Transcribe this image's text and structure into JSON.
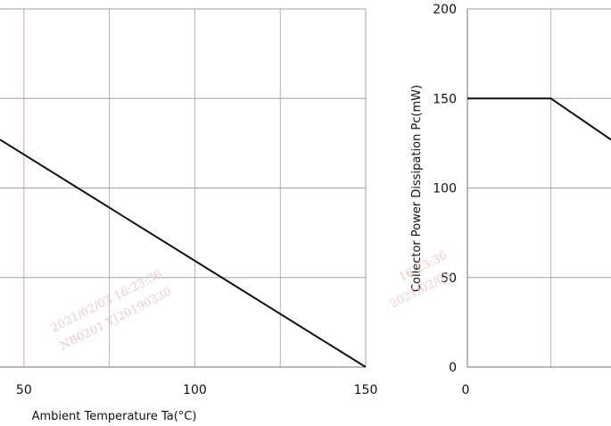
{
  "chart_data": [
    {
      "type": "line",
      "xlabel": "Ambient Temperature Ta(°C)",
      "ylabel": "",
      "x_ticks": [
        "50",
        "100",
        "150"
      ],
      "xlim": [
        43,
        150
      ],
      "ylim": [
        0,
        200
      ],
      "grid": true,
      "series": [
        {
          "x": [
            43,
            150
          ],
          "y": [
            127,
            0
          ]
        }
      ]
    },
    {
      "type": "line",
      "xlabel": "",
      "ylabel": "Collector Power Dissipation   Pc(mW)",
      "x_ticks": [
        "0"
      ],
      "y_ticks": [
        "0",
        "50",
        "100",
        "150",
        "200"
      ],
      "xlim": [
        0,
        43
      ],
      "ylim": [
        0,
        200
      ],
      "grid": true,
      "series": [
        {
          "x": [
            0,
            25,
            43
          ],
          "y": [
            150,
            150,
            127
          ]
        }
      ]
    }
  ],
  "watermark": {
    "left_line1": "2021/02/03  16:23:36",
    "left_line2": "NB0201  YJ20190330",
    "right_line1": "16:23:36",
    "right_line2": "2021/02/03"
  }
}
